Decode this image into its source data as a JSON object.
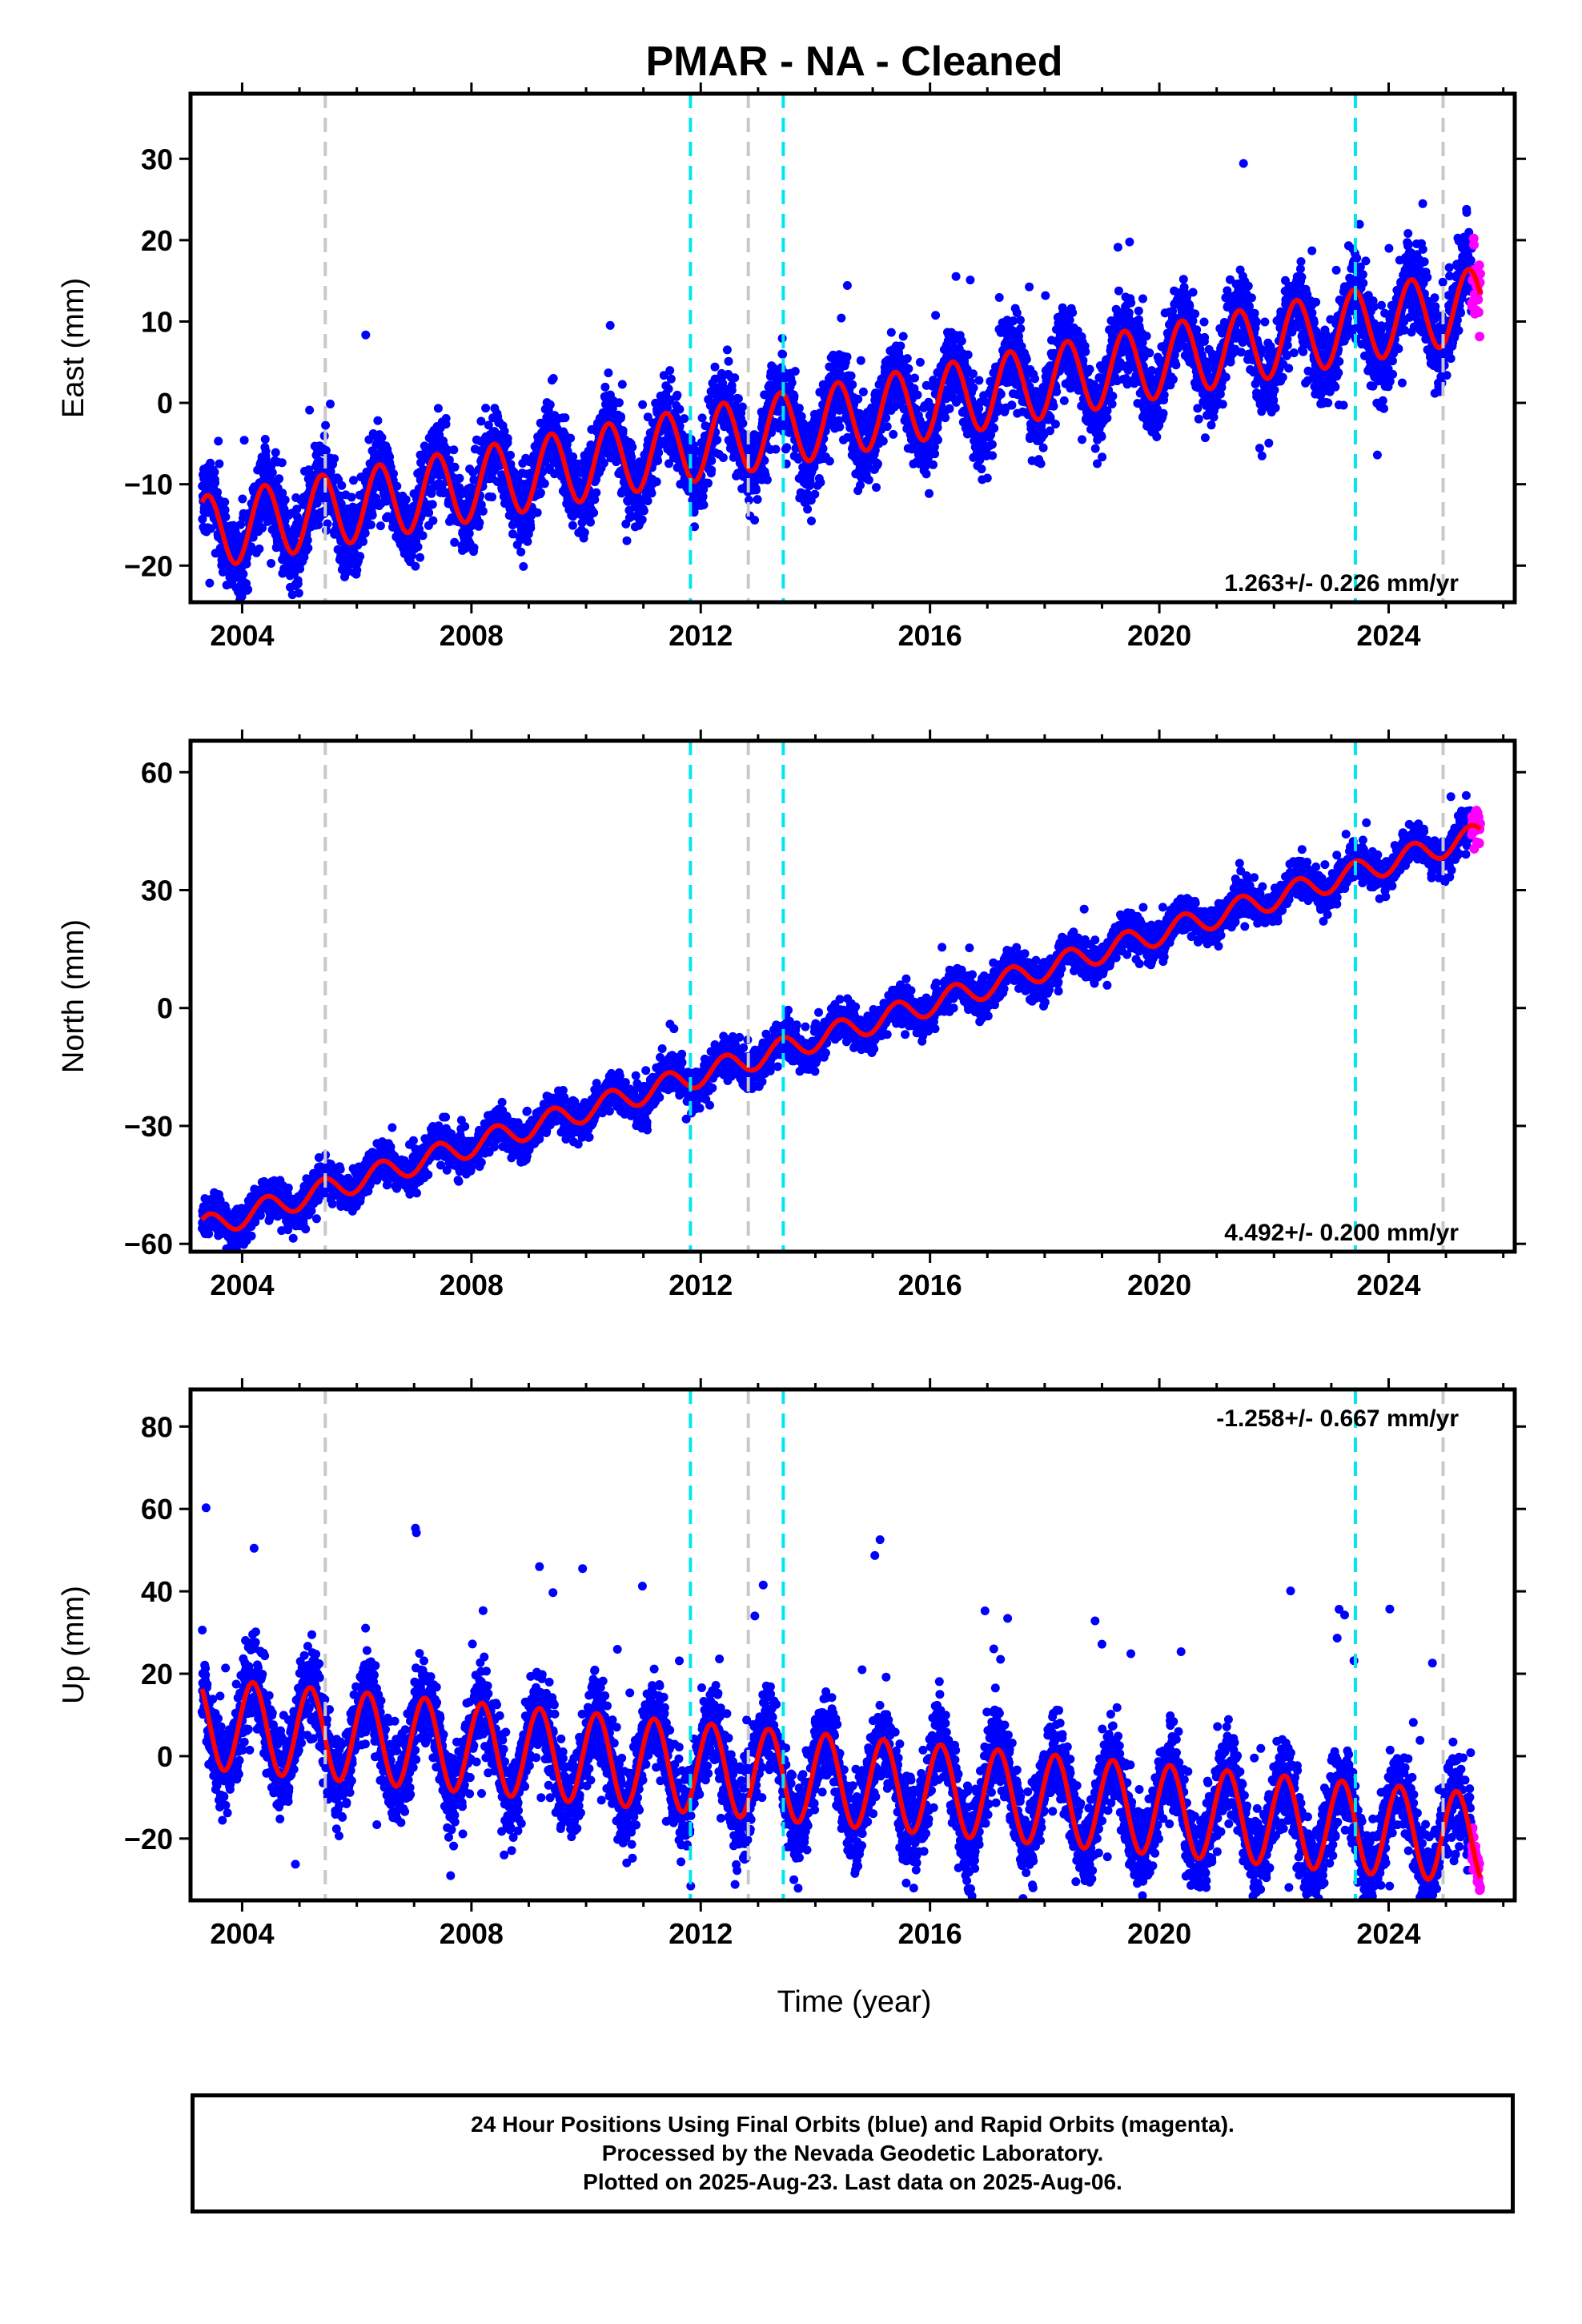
{
  "figure": {
    "title": "PMAR  - NA - Cleaned",
    "xlabel": "Time (year)"
  },
  "footer": {
    "line1": "24 Hour Positions Using Final Orbits (blue) and Rapid Orbits (magenta).",
    "line2": "Processed by the Nevada Geodetic Laboratory.",
    "line3": "Plotted on 2025-Aug-23. Last data on 2025-Aug-06."
  },
  "colors": {
    "final_orbits": "#0000ff",
    "rapid_orbits": "#ff00ff",
    "model": "#ff0000",
    "equipment_change": "#c8c8c8",
    "earthquake": "#00e5ee"
  },
  "vertical_lines": [
    {
      "x": 2005.45,
      "type": "equipment_change"
    },
    {
      "x": 2011.82,
      "type": "earthquake"
    },
    {
      "x": 2012.83,
      "type": "equipment_change"
    },
    {
      "x": 2013.44,
      "type": "earthquake"
    },
    {
      "x": 2023.42,
      "type": "earthquake"
    },
    {
      "x": 2024.95,
      "type": "equipment_change"
    }
  ],
  "chart_data": [
    {
      "type": "scatter",
      "component": "East",
      "ylabel": "East (mm)",
      "xlim": [
        2003.1,
        2026.2
      ],
      "ylim": [
        -24.5,
        38.0
      ],
      "xticks": [
        2004,
        2008,
        2012,
        2016,
        2020,
        2024
      ],
      "yticks": [
        -20,
        -10,
        0,
        10,
        20,
        30
      ],
      "rate_label": "1.263+/- 0.226 mm/yr",
      "trend": {
        "start_year": 2003.3,
        "start_value": -16.0,
        "rate": 1.263
      },
      "seasonal_amplitude": 4.5,
      "series": [
        {
          "name": "Final Orbits",
          "color": "#0000ff",
          "x_range": [
            2003.3,
            2025.45
          ]
        },
        {
          "name": "Rapid Orbits",
          "color": "#ff00ff",
          "x_range": [
            2025.45,
            2025.6
          ]
        }
      ]
    },
    {
      "type": "scatter",
      "component": "North",
      "ylabel": "North (mm)",
      "xlim": [
        2003.1,
        2026.2
      ],
      "ylim": [
        -62.0,
        68.0
      ],
      "xticks": [
        2004,
        2008,
        2012,
        2016,
        2020,
        2024
      ],
      "yticks": [
        -60,
        -30,
        0,
        30,
        60
      ],
      "rate_label": "4.492+/- 0.200 mm/yr",
      "trend": {
        "start_year": 2003.3,
        "start_value": -56.0,
        "rate": 4.492
      },
      "seasonal_amplitude": 3.0,
      "series": [
        {
          "name": "Final Orbits",
          "color": "#0000ff",
          "x_range": [
            2003.3,
            2025.45
          ]
        },
        {
          "name": "Rapid Orbits",
          "color": "#ff00ff",
          "x_range": [
            2025.45,
            2025.6
          ]
        }
      ]
    },
    {
      "type": "scatter",
      "component": "Up",
      "ylabel": "Up (mm)",
      "xlim": [
        2003.1,
        2026.2
      ],
      "ylim": [
        -35.0,
        89.0
      ],
      "xticks": [
        2004,
        2008,
        2012,
        2016,
        2020,
        2024
      ],
      "yticks": [
        -20,
        0,
        20,
        40,
        60,
        80
      ],
      "rate_label": "-1.258+/- 0.667 mm/yr",
      "trend": {
        "start_year": 2003.3,
        "start_value": 8.0,
        "rate": -1.258
      },
      "seasonal_amplitude": 11.0,
      "series": [
        {
          "name": "Final Orbits",
          "color": "#0000ff",
          "x_range": [
            2003.3,
            2025.45
          ]
        },
        {
          "name": "Rapid Orbits",
          "color": "#ff00ff",
          "x_range": [
            2025.45,
            2025.6
          ]
        }
      ]
    }
  ]
}
